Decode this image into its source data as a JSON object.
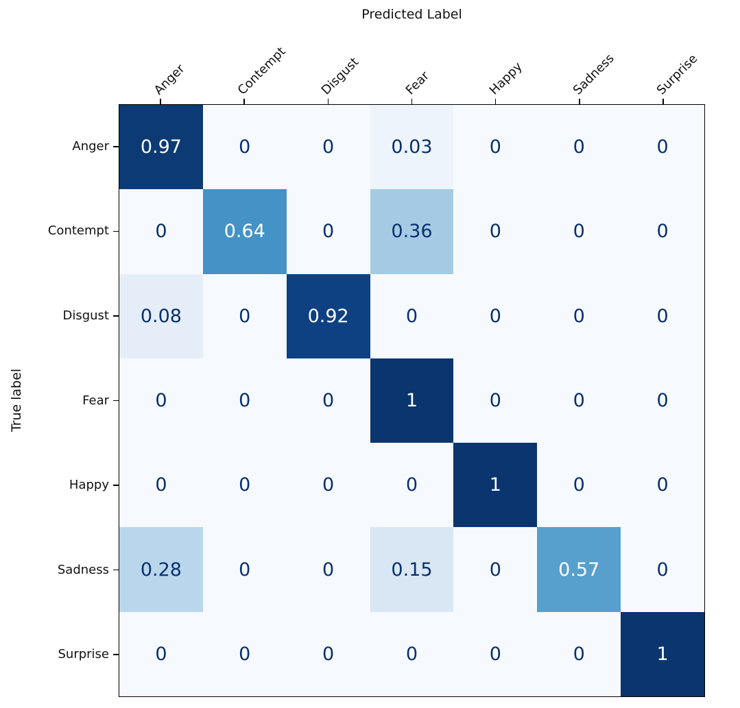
{
  "chart_data": {
    "type": "heatmap",
    "xlabel": "Predicted Label",
    "ylabel": "True label",
    "categories": [
      "Anger",
      "Contempt",
      "Disgust",
      "Fear",
      "Happy",
      "Sadness",
      "Surprise"
    ],
    "rows": [
      {
        "label": "Anger",
        "values": [
          0.97,
          0,
          0,
          0.03,
          0,
          0,
          0
        ]
      },
      {
        "label": "Contempt",
        "values": [
          0,
          0.64,
          0,
          0.36,
          0,
          0,
          0
        ]
      },
      {
        "label": "Disgust",
        "values": [
          0.08,
          0,
          0.92,
          0,
          0,
          0,
          0
        ]
      },
      {
        "label": "Fear",
        "values": [
          0,
          0,
          0,
          1,
          0,
          0,
          0
        ]
      },
      {
        "label": "Happy",
        "values": [
          0,
          0,
          0,
          0,
          1,
          0,
          0
        ]
      },
      {
        "label": "Sadness",
        "values": [
          0.28,
          0,
          0,
          0.15,
          0,
          0.57,
          0
        ]
      },
      {
        "label": "Surprise",
        "values": [
          0,
          0,
          0,
          0,
          0,
          0,
          1
        ]
      }
    ],
    "vmin": 0,
    "vmax": 1,
    "grid": false,
    "legend": false,
    "colormap_name": "Blues",
    "value_colors": {
      "0": "#f6fafe",
      "0.03": "#eef4fb",
      "0.08": "#e5eef8",
      "0.15": "#d9e7f5",
      "0.28": "#bad6ec",
      "0.36": "#a5cbe4",
      "0.57": "#57a0ce",
      "0.64": "#4492c6",
      "0.92": "#0d4181",
      "0.97": "#0c3a74",
      "1": "#0a356f"
    },
    "cell_text_dark": "#08306b",
    "cell_text_light": "#ffffff",
    "white_text_threshold": 0.5,
    "axis_color": "#000000"
  }
}
